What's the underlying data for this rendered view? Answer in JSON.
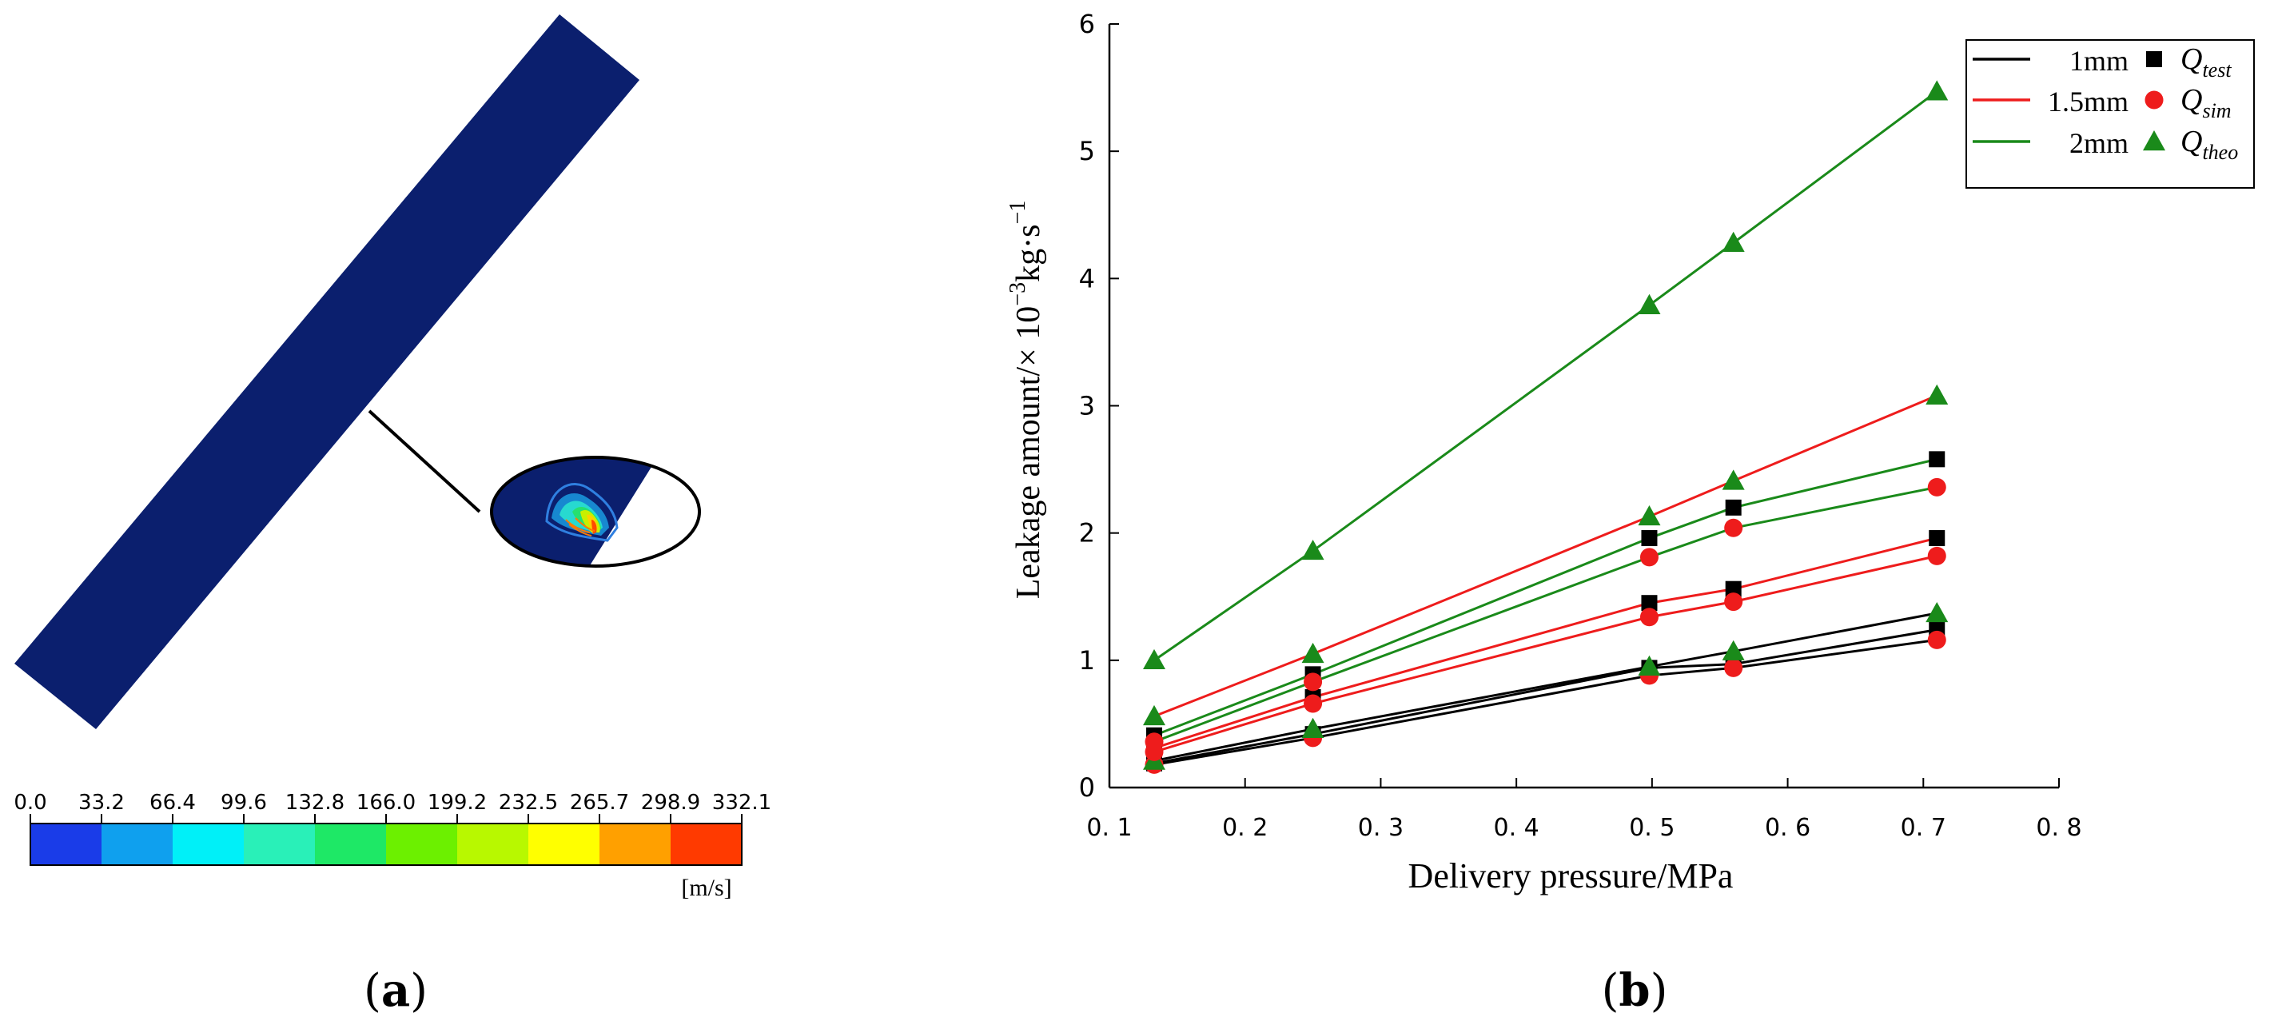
{
  "panel_a": {
    "label_open": "(",
    "label_letter": "a",
    "label_close": ")",
    "colorbar": {
      "ticks": [
        "0.0",
        "33.2",
        "66.4",
        "99.6",
        "132.8",
        "166.0",
        "199.2",
        "232.5",
        "265.7",
        "298.9",
        "332.1"
      ],
      "colors": [
        "#1a3ce8",
        "#0fa0ee",
        "#00f0f8",
        "#29f0b8",
        "#1ee866",
        "#6cf000",
        "#b8f800",
        "#ffff00",
        "#ffa000",
        "#ff3a00"
      ],
      "unit": "[m/s]"
    },
    "pipe_color": "#0b1f6e"
  },
  "panel_b": {
    "label_open": "(",
    "label_letter": "b",
    "label_close": ")"
  },
  "chart_data": {
    "type": "line",
    "title": "",
    "xlabel": "Delivery pressure/MPa",
    "ylabel_main": "Leakage amount/",
    "ylabel_times": "× 10",
    "ylabel_exp1": "−3",
    "ylabel_kg": "kg·s",
    "ylabel_exp2": "−1",
    "xlim": [
      0.1,
      0.8
    ],
    "ylim": [
      0,
      6
    ],
    "x_ticks": [
      "0. 1",
      "0. 2",
      "0. 3",
      "0. 4",
      "0. 5",
      "0. 6",
      "0. 7",
      "0. 8"
    ],
    "y_ticks": [
      "0",
      "1",
      "2",
      "3",
      "4",
      "5",
      "6"
    ],
    "x": [
      0.133,
      0.25,
      0.498,
      0.56,
      0.71
    ],
    "legend": {
      "lines": [
        {
          "label": "1mm",
          "color": "#000000"
        },
        {
          "label": "1.5mm",
          "color": "#ee1c1c"
        },
        {
          "label": "2mm",
          "color": "#1a8a1a"
        }
      ],
      "markers": [
        {
          "sym": "Q",
          "sub": "test",
          "shape": "square",
          "color": "#000000"
        },
        {
          "sym": "Q",
          "sub": "sim",
          "shape": "circle",
          "color": "#ee1c1c"
        },
        {
          "sym": "Q",
          "sub": "theo",
          "shape": "triangle",
          "color": "#1a8a1a"
        }
      ]
    },
    "series": [
      {
        "name": "1mm Q_test",
        "line_color": "#000000",
        "marker": "square",
        "marker_color": "#000000",
        "values": [
          0.19,
          0.42,
          0.94,
          0.97,
          1.24
        ]
      },
      {
        "name": "1mm Q_sim",
        "line_color": "#000000",
        "marker": "circle",
        "marker_color": "#ee1c1c",
        "values": [
          0.18,
          0.39,
          0.88,
          0.94,
          1.16
        ]
      },
      {
        "name": "1mm Q_theo",
        "line_color": "#000000",
        "marker": "triangle",
        "marker_color": "#1a8a1a",
        "values": [
          0.21,
          0.46,
          0.95,
          1.07,
          1.37
        ]
      },
      {
        "name": "1.5mm Q_test",
        "line_color": "#ee1c1c",
        "marker": "square",
        "marker_color": "#000000",
        "values": [
          0.31,
          0.71,
          1.45,
          1.56,
          1.96
        ]
      },
      {
        "name": "1.5mm Q_sim",
        "line_color": "#ee1c1c",
        "marker": "circle",
        "marker_color": "#ee1c1c",
        "values": [
          0.28,
          0.66,
          1.34,
          1.46,
          1.82
        ]
      },
      {
        "name": "1.5mm Q_theo",
        "line_color": "#ee1c1c",
        "marker": "triangle",
        "marker_color": "#1a8a1a",
        "values": [
          0.56,
          1.05,
          2.13,
          2.41,
          3.08
        ]
      },
      {
        "name": "2mm Q_test",
        "line_color": "#1a8a1a",
        "marker": "square",
        "marker_color": "#000000",
        "values": [
          0.41,
          0.89,
          1.96,
          2.2,
          2.58
        ]
      },
      {
        "name": "2mm Q_sim",
        "line_color": "#1a8a1a",
        "marker": "circle",
        "marker_color": "#ee1c1c",
        "values": [
          0.36,
          0.83,
          1.81,
          2.04,
          2.36
        ]
      },
      {
        "name": "2mm Q_theo",
        "line_color": "#1a8a1a",
        "marker": "triangle",
        "marker_color": "#1a8a1a",
        "values": [
          1.0,
          1.86,
          3.79,
          4.28,
          5.47
        ]
      }
    ]
  }
}
